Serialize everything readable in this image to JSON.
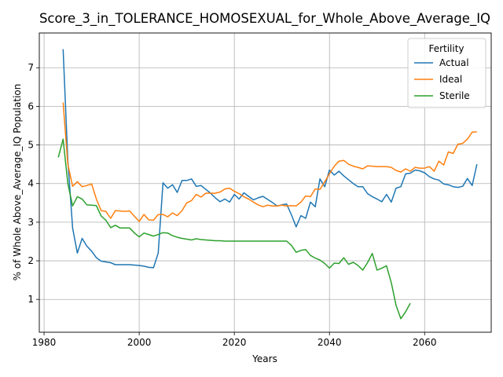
{
  "chart_data": {
    "type": "line",
    "title": "Score_3_in_TOLERANCE_HOMOSEXUAL_for_Whole_Above_Average_IQ",
    "xlabel": "Years",
    "ylabel": "% of Whole Above_Average_IQ Population",
    "xlim": [
      1979,
      2074
    ],
    "ylim": [
      0.15,
      7.9
    ],
    "xticks": [
      1980,
      2000,
      2020,
      2040,
      2060
    ],
    "yticks": [
      1,
      2,
      3,
      4,
      5,
      6,
      7
    ],
    "grid": true,
    "legend": {
      "title": "Fertility",
      "placement": "top-right"
    },
    "series": [
      {
        "name": "Actual",
        "color": "#1f77b4",
        "points": [
          [
            1984,
            7.48
          ],
          [
            1985,
            4.6
          ],
          [
            1986,
            2.85
          ],
          [
            1987,
            2.2
          ],
          [
            1988,
            2.58
          ],
          [
            1989,
            2.38
          ],
          [
            1990,
            2.25
          ],
          [
            1991,
            2.08
          ],
          [
            1992,
            1.99
          ],
          [
            1993,
            1.97
          ],
          [
            1994,
            1.95
          ],
          [
            1995,
            1.9
          ],
          [
            1996,
            1.9
          ],
          [
            1997,
            1.9
          ],
          [
            1998,
            1.9
          ],
          [
            1999,
            1.89
          ],
          [
            2000,
            1.88
          ],
          [
            2001,
            1.86
          ],
          [
            2002,
            1.83
          ],
          [
            2003,
            1.82
          ],
          [
            2004,
            2.2
          ],
          [
            2005,
            4.02
          ],
          [
            2006,
            3.88
          ],
          [
            2007,
            3.97
          ],
          [
            2008,
            3.77
          ],
          [
            2009,
            4.08
          ],
          [
            2010,
            4.08
          ],
          [
            2011,
            4.12
          ],
          [
            2012,
            3.93
          ],
          [
            2013,
            3.95
          ],
          [
            2014,
            3.85
          ],
          [
            2015,
            3.75
          ],
          [
            2016,
            3.63
          ],
          [
            2017,
            3.53
          ],
          [
            2018,
            3.6
          ],
          [
            2019,
            3.52
          ],
          [
            2020,
            3.72
          ],
          [
            2021,
            3.6
          ],
          [
            2022,
            3.76
          ],
          [
            2023,
            3.67
          ],
          [
            2024,
            3.58
          ],
          [
            2025,
            3.63
          ],
          [
            2026,
            3.67
          ],
          [
            2027,
            3.59
          ],
          [
            2028,
            3.51
          ],
          [
            2029,
            3.42
          ],
          [
            2030,
            3.45
          ],
          [
            2031,
            3.47
          ],
          [
            2032,
            3.19
          ],
          [
            2033,
            2.88
          ],
          [
            2034,
            3.17
          ],
          [
            2035,
            3.1
          ],
          [
            2036,
            3.52
          ],
          [
            2037,
            3.4
          ],
          [
            2038,
            4.12
          ],
          [
            2039,
            3.92
          ],
          [
            2040,
            4.35
          ],
          [
            2041,
            4.22
          ],
          [
            2042,
            4.32
          ],
          [
            2043,
            4.2
          ],
          [
            2044,
            4.1
          ],
          [
            2045,
            4.0
          ],
          [
            2046,
            3.92
          ],
          [
            2047,
            3.92
          ],
          [
            2048,
            3.74
          ],
          [
            2049,
            3.66
          ],
          [
            2050,
            3.6
          ],
          [
            2051,
            3.53
          ],
          [
            2052,
            3.72
          ],
          [
            2053,
            3.52
          ],
          [
            2054,
            3.88
          ],
          [
            2055,
            3.92
          ],
          [
            2056,
            4.25
          ],
          [
            2057,
            4.27
          ],
          [
            2058,
            4.35
          ],
          [
            2059,
            4.33
          ],
          [
            2060,
            4.28
          ],
          [
            2061,
            4.18
          ],
          [
            2062,
            4.12
          ],
          [
            2063,
            4.09
          ],
          [
            2064,
            3.99
          ],
          [
            2065,
            3.97
          ],
          [
            2066,
            3.92
          ],
          [
            2067,
            3.9
          ],
          [
            2068,
            3.93
          ],
          [
            2069,
            4.13
          ],
          [
            2070,
            3.95
          ],
          [
            2071,
            4.5
          ]
        ]
      },
      {
        "name": "Ideal",
        "color": "#ff7f0e",
        "points": [
          [
            1984,
            6.1
          ],
          [
            1985,
            4.5
          ],
          [
            1986,
            3.93
          ],
          [
            1987,
            4.05
          ],
          [
            1988,
            3.92
          ],
          [
            1989,
            3.95
          ],
          [
            1990,
            3.99
          ],
          [
            1991,
            3.6
          ],
          [
            1992,
            3.3
          ],
          [
            1993,
            3.28
          ],
          [
            1994,
            3.1
          ],
          [
            1995,
            3.3
          ],
          [
            1996,
            3.29
          ],
          [
            1997,
            3.28
          ],
          [
            1998,
            3.29
          ],
          [
            1999,
            3.15
          ],
          [
            2000,
            3.02
          ],
          [
            2001,
            3.2
          ],
          [
            2002,
            3.06
          ],
          [
            2003,
            3.05
          ],
          [
            2004,
            3.2
          ],
          [
            2005,
            3.2
          ],
          [
            2006,
            3.14
          ],
          [
            2007,
            3.24
          ],
          [
            2008,
            3.17
          ],
          [
            2009,
            3.3
          ],
          [
            2010,
            3.5
          ],
          [
            2011,
            3.56
          ],
          [
            2012,
            3.72
          ],
          [
            2013,
            3.65
          ],
          [
            2014,
            3.75
          ],
          [
            2015,
            3.75
          ],
          [
            2016,
            3.75
          ],
          [
            2017,
            3.78
          ],
          [
            2018,
            3.86
          ],
          [
            2019,
            3.88
          ],
          [
            2020,
            3.8
          ],
          [
            2021,
            3.74
          ],
          [
            2022,
            3.66
          ],
          [
            2023,
            3.6
          ],
          [
            2024,
            3.52
          ],
          [
            2025,
            3.45
          ],
          [
            2026,
            3.4
          ],
          [
            2027,
            3.44
          ],
          [
            2028,
            3.42
          ],
          [
            2029,
            3.42
          ],
          [
            2030,
            3.44
          ],
          [
            2031,
            3.42
          ],
          [
            2032,
            3.43
          ],
          [
            2033,
            3.42
          ],
          [
            2034,
            3.52
          ],
          [
            2035,
            3.68
          ],
          [
            2036,
            3.66
          ],
          [
            2037,
            3.86
          ],
          [
            2038,
            3.85
          ],
          [
            2039,
            4.05
          ],
          [
            2040,
            4.25
          ],
          [
            2041,
            4.45
          ],
          [
            2042,
            4.58
          ],
          [
            2043,
            4.6
          ],
          [
            2044,
            4.5
          ],
          [
            2045,
            4.45
          ],
          [
            2046,
            4.42
          ],
          [
            2047,
            4.38
          ],
          [
            2048,
            4.46
          ],
          [
            2049,
            4.45
          ],
          [
            2050,
            4.44
          ],
          [
            2051,
            4.44
          ],
          [
            2052,
            4.44
          ],
          [
            2053,
            4.42
          ],
          [
            2054,
            4.34
          ],
          [
            2055,
            4.3
          ],
          [
            2056,
            4.38
          ],
          [
            2057,
            4.32
          ],
          [
            2058,
            4.42
          ],
          [
            2059,
            4.4
          ],
          [
            2060,
            4.4
          ],
          [
            2061,
            4.44
          ],
          [
            2062,
            4.32
          ],
          [
            2063,
            4.58
          ],
          [
            2064,
            4.48
          ],
          [
            2065,
            4.82
          ],
          [
            2066,
            4.78
          ],
          [
            2067,
            5.02
          ],
          [
            2068,
            5.04
          ],
          [
            2069,
            5.15
          ],
          [
            2070,
            5.33
          ],
          [
            2071,
            5.34
          ]
        ]
      },
      {
        "name": "Sterile",
        "color": "#2ca02c",
        "points": [
          [
            1983,
            4.68
          ],
          [
            1984,
            5.15
          ],
          [
            1985,
            4.0
          ],
          [
            1986,
            3.42
          ],
          [
            1987,
            3.66
          ],
          [
            1988,
            3.6
          ],
          [
            1989,
            3.45
          ],
          [
            1990,
            3.44
          ],
          [
            1991,
            3.43
          ],
          [
            1992,
            3.16
          ],
          [
            1993,
            3.05
          ],
          [
            1994,
            2.86
          ],
          [
            1995,
            2.92
          ],
          [
            1996,
            2.85
          ],
          [
            1997,
            2.85
          ],
          [
            1998,
            2.85
          ],
          [
            1999,
            2.72
          ],
          [
            2000,
            2.62
          ],
          [
            2001,
            2.72
          ],
          [
            2002,
            2.68
          ],
          [
            2003,
            2.64
          ],
          [
            2004,
            2.68
          ],
          [
            2005,
            2.73
          ],
          [
            2006,
            2.72
          ],
          [
            2007,
            2.65
          ],
          [
            2008,
            2.61
          ],
          [
            2009,
            2.58
          ],
          [
            2010,
            2.56
          ],
          [
            2011,
            2.54
          ],
          [
            2012,
            2.57
          ],
          [
            2013,
            2.55
          ],
          [
            2014,
            2.54
          ],
          [
            2015,
            2.53
          ],
          [
            2016,
            2.52
          ],
          [
            2017,
            2.52
          ],
          [
            2018,
            2.51
          ],
          [
            2019,
            2.51
          ],
          [
            2020,
            2.51
          ],
          [
            2021,
            2.51
          ],
          [
            2022,
            2.51
          ],
          [
            2023,
            2.51
          ],
          [
            2024,
            2.51
          ],
          [
            2025,
            2.51
          ],
          [
            2026,
            2.51
          ],
          [
            2027,
            2.51
          ],
          [
            2028,
            2.51
          ],
          [
            2029,
            2.51
          ],
          [
            2030,
            2.51
          ],
          [
            2031,
            2.51
          ],
          [
            2032,
            2.4
          ],
          [
            2033,
            2.22
          ],
          [
            2034,
            2.27
          ],
          [
            2035,
            2.29
          ],
          [
            2036,
            2.14
          ],
          [
            2037,
            2.07
          ],
          [
            2038,
            2.02
          ],
          [
            2039,
            1.93
          ],
          [
            2040,
            1.81
          ],
          [
            2041,
            1.94
          ],
          [
            2042,
            1.93
          ],
          [
            2043,
            2.08
          ],
          [
            2044,
            1.91
          ],
          [
            2045,
            1.96
          ],
          [
            2046,
            1.88
          ],
          [
            2047,
            1.76
          ],
          [
            2048,
            1.95
          ],
          [
            2049,
            2.19
          ],
          [
            2050,
            1.76
          ],
          [
            2051,
            1.81
          ],
          [
            2052,
            1.87
          ],
          [
            2053,
            1.43
          ],
          [
            2054,
            0.85
          ],
          [
            2055,
            0.5
          ],
          [
            2056,
            0.68
          ],
          [
            2057,
            0.9
          ]
        ]
      }
    ]
  }
}
